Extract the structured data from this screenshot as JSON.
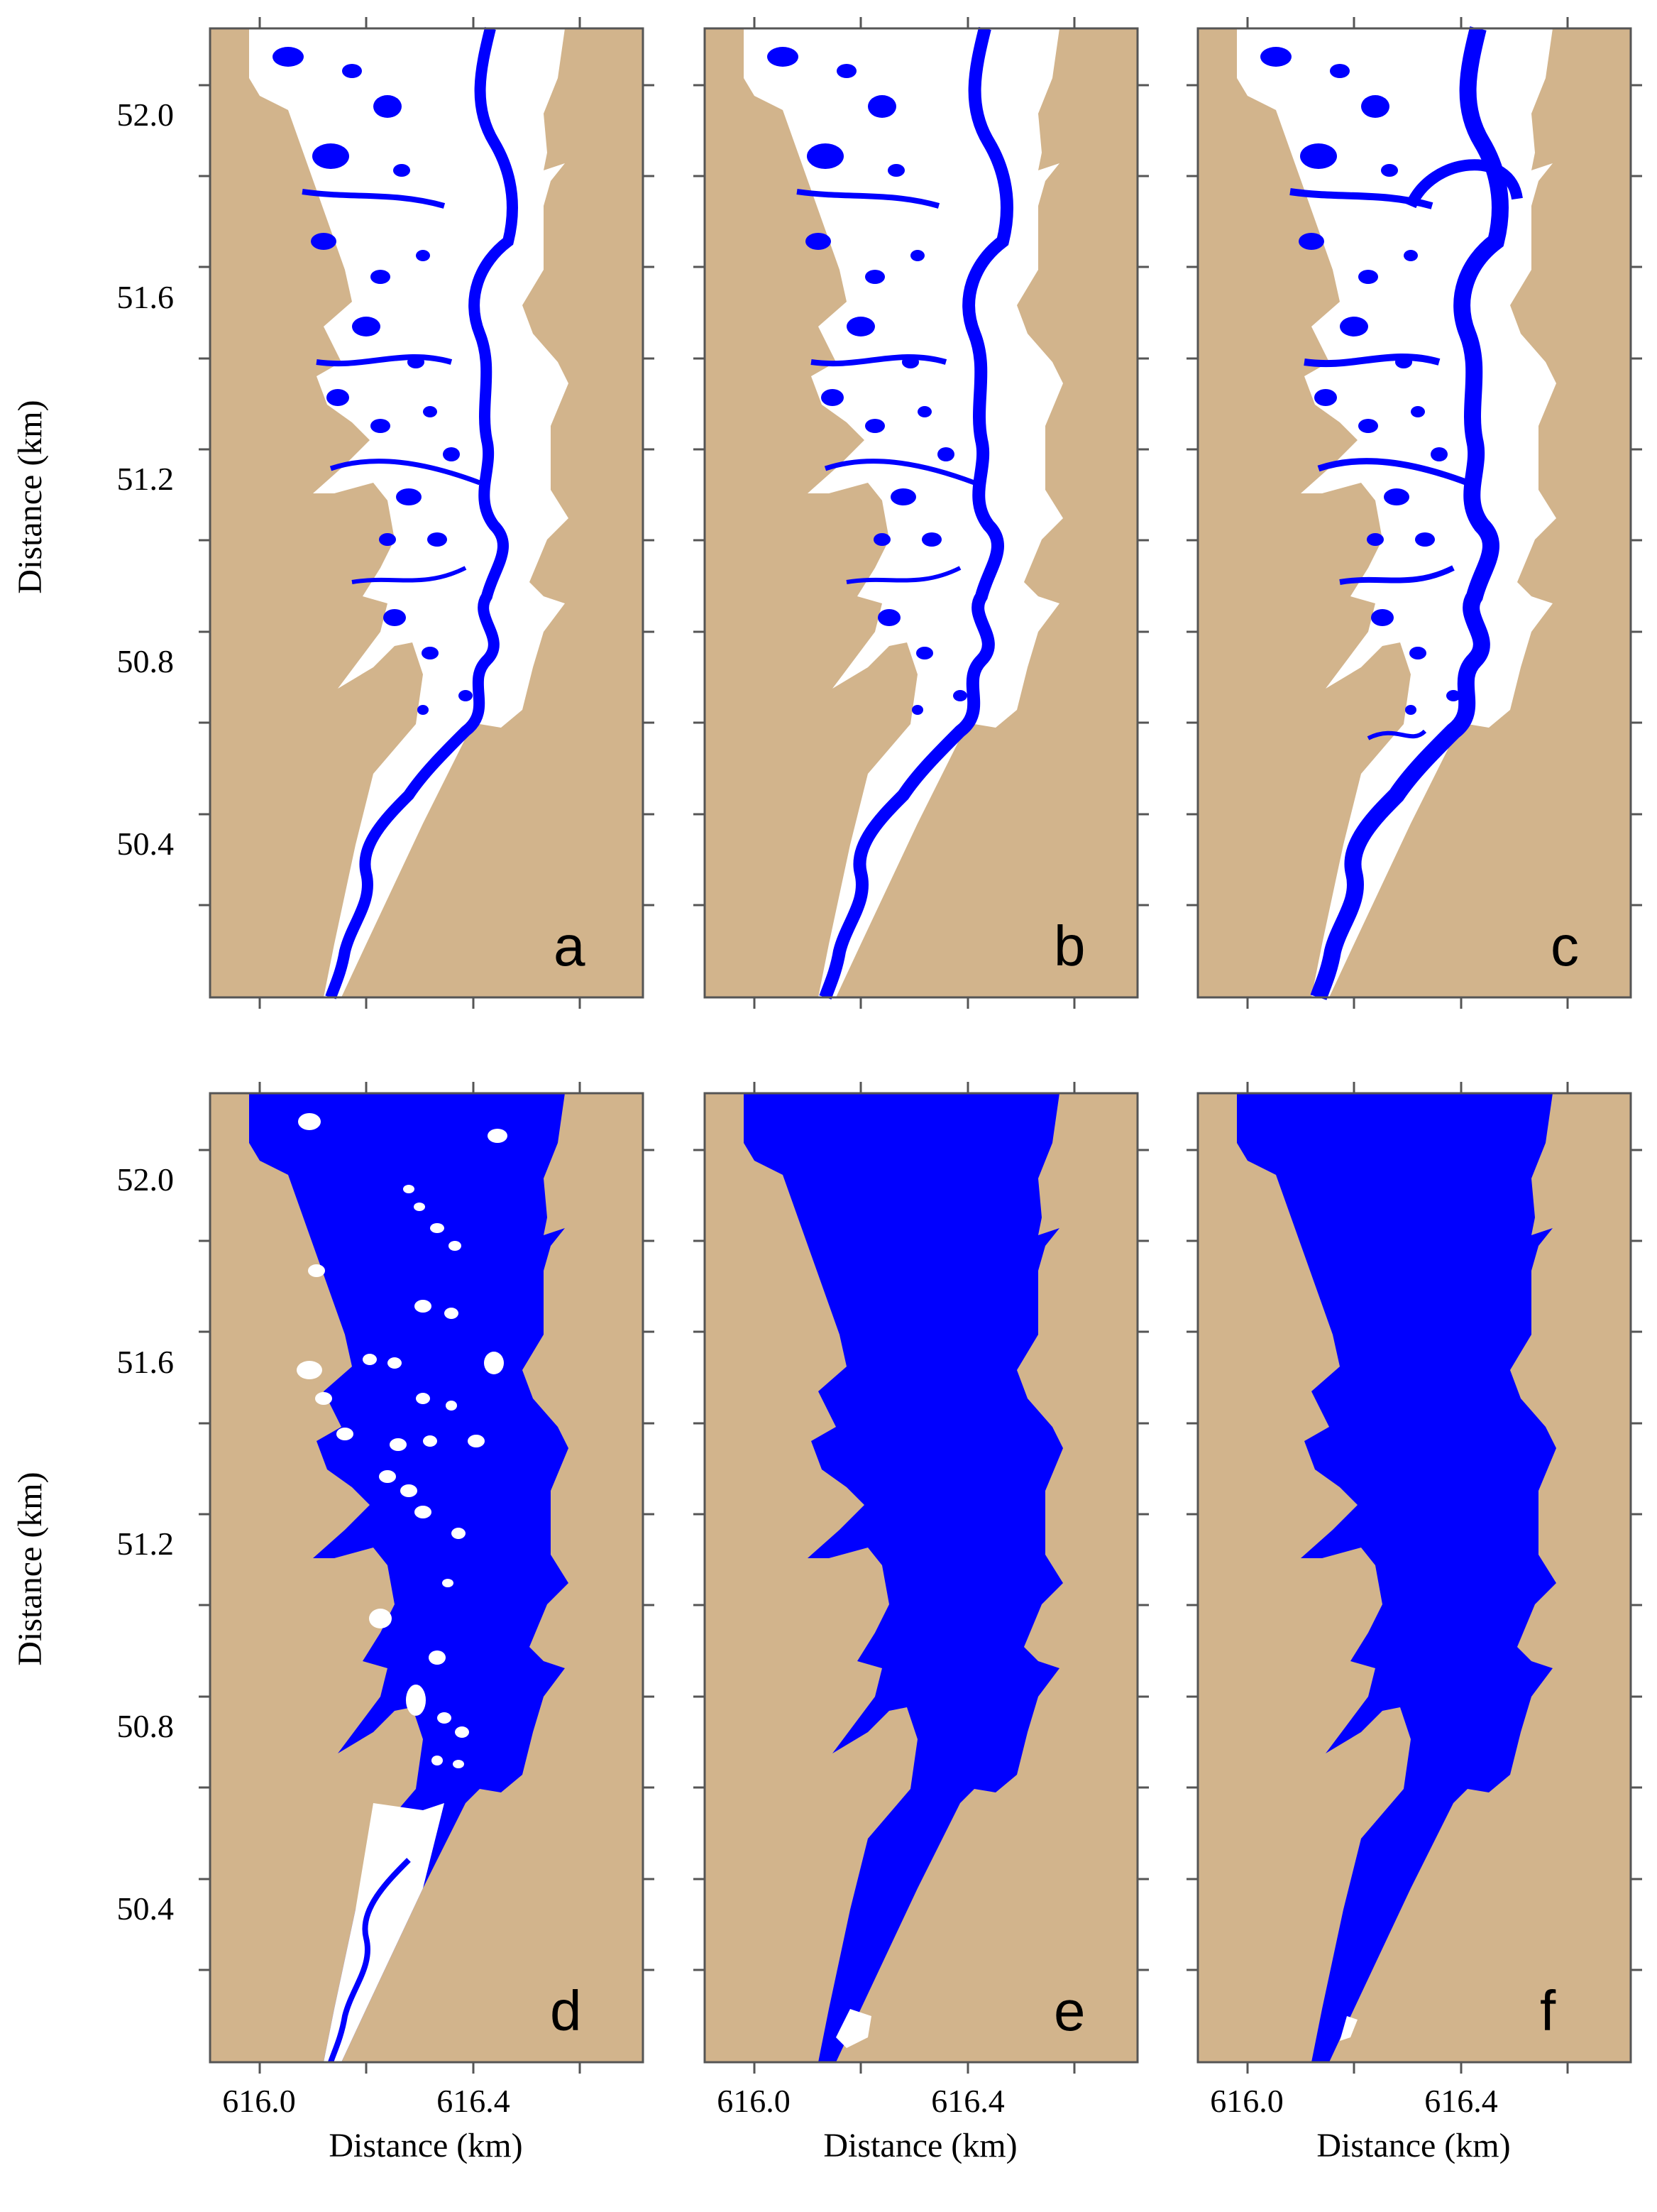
{
  "figure": {
    "xlabel": "Distance (km)",
    "ylabel": "Distance (km)",
    "x_ticks": [
      "616.0",
      "616.4"
    ],
    "y_ticks": [
      "52.0",
      "51.6",
      "51.2",
      "50.8",
      "50.4"
    ],
    "colors": {
      "land": "#d2b48c",
      "water": "#0000ff",
      "dry": "#ffffff",
      "frame": "#555555"
    }
  },
  "panels": [
    {
      "letter": "a",
      "flooding": "channels"
    },
    {
      "letter": "b",
      "flooding": "channels"
    },
    {
      "letter": "c",
      "flooding": "channels-expanded"
    },
    {
      "letter": "d",
      "flooding": "mostly-flooded"
    },
    {
      "letter": "e",
      "flooding": "fully-flooded"
    },
    {
      "letter": "f",
      "flooding": "fully-flooded"
    }
  ],
  "chart_data": {
    "type": "other",
    "layout": "2x3 small multiples",
    "x_tick_values": [
      616.0,
      616.4
    ],
    "y_tick_values": [
      52.0,
      51.6,
      51.2,
      50.8,
      50.4
    ],
    "xlim": [
      615.9,
      616.62
    ],
    "ylim": [
      50.07,
      52.17
    ]
  }
}
